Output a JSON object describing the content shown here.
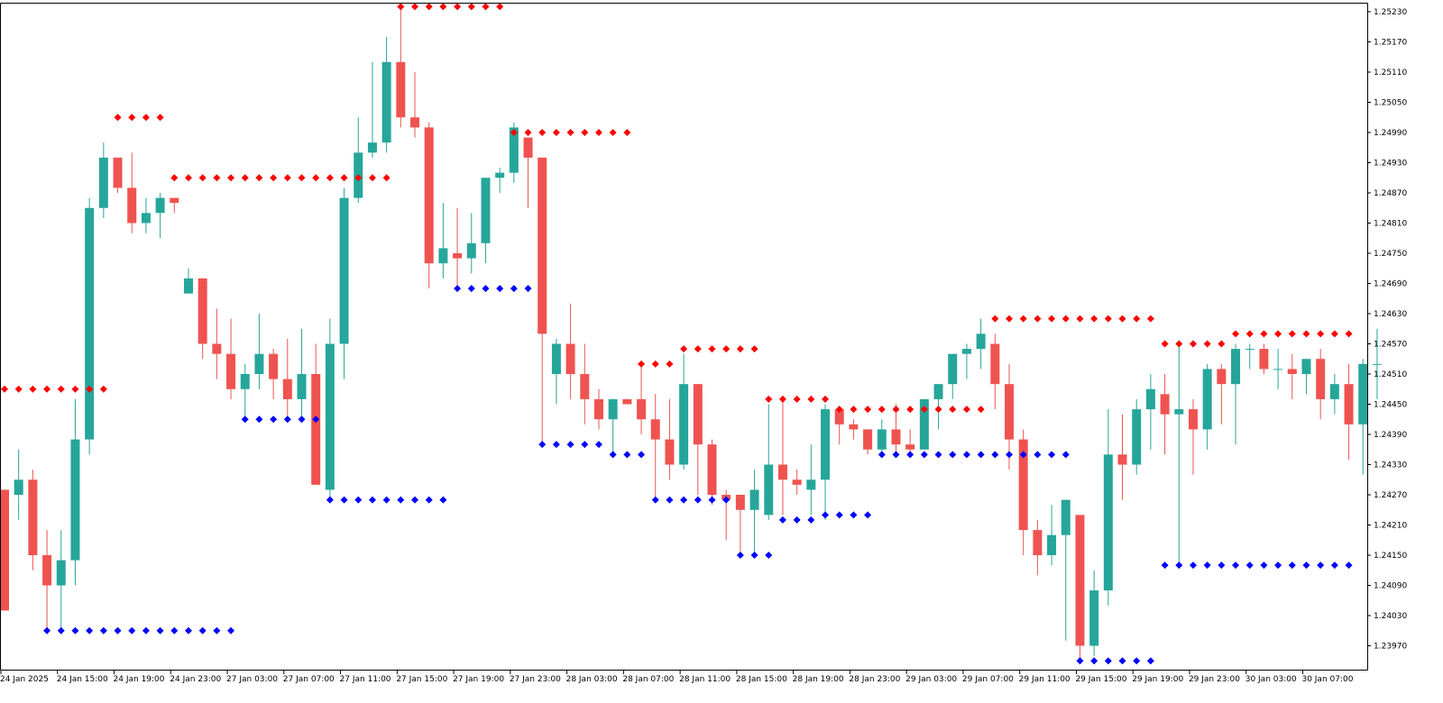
{
  "chart_data": {
    "type": "candlestick",
    "title": "",
    "grid": false,
    "colors": {
      "bull": "#26a69a",
      "bear": "#ef5350",
      "resistance": "#ff0000",
      "support": "#0000ff",
      "axis": "#000000",
      "background": "#ffffff"
    },
    "y_ticks": [
      "1.25230",
      "1.25170",
      "1.25110",
      "1.25050",
      "1.24990",
      "1.24930",
      "1.24870",
      "1.24810",
      "1.24750",
      "1.24690",
      "1.24630",
      "1.24570",
      "1.24510",
      "1.24450",
      "1.24390",
      "1.24330",
      "1.24270",
      "1.24210",
      "1.24150",
      "1.24090",
      "1.24030",
      "1.23970"
    ],
    "ylim": [
      1.2392,
      1.2526
    ],
    "x_ticks": [
      {
        "label": "24 Jan 2025",
        "index": 0
      },
      {
        "label": "24 Jan 15:00",
        "index": 4
      },
      {
        "label": "24 Jan 19:00",
        "index": 8
      },
      {
        "label": "24 Jan 23:00",
        "index": 12
      },
      {
        "label": "27 Jan 03:00",
        "index": 16
      },
      {
        "label": "27 Jan 07:00",
        "index": 20
      },
      {
        "label": "27 Jan 11:00",
        "index": 24
      },
      {
        "label": "27 Jan 15:00",
        "index": 28
      },
      {
        "label": "27 Jan 19:00",
        "index": 32
      },
      {
        "label": "27 Jan 23:00",
        "index": 36
      },
      {
        "label": "28 Jan 03:00",
        "index": 40
      },
      {
        "label": "28 Jan 07:00",
        "index": 44
      },
      {
        "label": "28 Jan 11:00",
        "index": 48
      },
      {
        "label": "28 Jan 15:00",
        "index": 52
      },
      {
        "label": "28 Jan 19:00",
        "index": 56
      },
      {
        "label": "28 Jan 23:00",
        "index": 60
      },
      {
        "label": "29 Jan 03:00",
        "index": 64
      },
      {
        "label": "29 Jan 07:00",
        "index": 68
      },
      {
        "label": "29 Jan 11:00",
        "index": 72
      },
      {
        "label": "29 Jan 15:00",
        "index": 76
      },
      {
        "label": "29 Jan 19:00",
        "index": 80
      },
      {
        "label": "29 Jan 23:00",
        "index": 84
      },
      {
        "label": "30 Jan 03:00",
        "index": 88
      },
      {
        "label": "30 Jan 07:00",
        "index": 92
      }
    ],
    "candles": [
      [
        1.2428,
        1.2428,
        1.2404,
        1.2404
      ],
      [
        1.2427,
        1.2436,
        1.2422,
        1.243
      ],
      [
        1.243,
        1.2432,
        1.2412,
        1.2415
      ],
      [
        1.2415,
        1.242,
        1.24,
        1.2409
      ],
      [
        1.2409,
        1.242,
        1.24,
        1.2414
      ],
      [
        1.2414,
        1.2446,
        1.2409,
        1.2438
      ],
      [
        1.2438,
        1.2486,
        1.2435,
        1.2484
      ],
      [
        1.2484,
        1.2497,
        1.2482,
        1.2494
      ],
      [
        1.2494,
        1.2494,
        1.2487,
        1.2488
      ],
      [
        1.2488,
        1.2495,
        1.2479,
        1.2481
      ],
      [
        1.2481,
        1.2486,
        1.2479,
        1.2483
      ],
      [
        1.2483,
        1.2487,
        1.2478,
        1.2486
      ],
      [
        1.2486,
        1.2486,
        1.2483,
        1.2485
      ],
      [
        1.2467,
        1.2472,
        1.2467,
        1.247
      ],
      [
        1.247,
        1.247,
        1.2454,
        1.2457
      ],
      [
        1.2457,
        1.2464,
        1.245,
        1.2455
      ],
      [
        1.2455,
        1.2462,
        1.2446,
        1.2448
      ],
      [
        1.2448,
        1.2453,
        1.2442,
        1.2451
      ],
      [
        1.2451,
        1.2463,
        1.2448,
        1.2455
      ],
      [
        1.2455,
        1.2456,
        1.2446,
        1.245
      ],
      [
        1.245,
        1.2458,
        1.2442,
        1.2446
      ],
      [
        1.2446,
        1.246,
        1.2442,
        1.2451
      ],
      [
        1.2451,
        1.2457,
        1.2429,
        1.2429
      ],
      [
        1.2428,
        1.2462,
        1.2426,
        1.2457
      ],
      [
        1.2457,
        1.2488,
        1.245,
        1.2486
      ],
      [
        1.2486,
        1.2502,
        1.2485,
        1.2495
      ],
      [
        1.2495,
        1.2513,
        1.2494,
        1.2497
      ],
      [
        1.2497,
        1.2518,
        1.2495,
        1.2513
      ],
      [
        1.2513,
        1.2524,
        1.25,
        1.2502
      ],
      [
        1.2502,
        1.2511,
        1.2498,
        1.25
      ],
      [
        1.25,
        1.2501,
        1.2468,
        1.2473
      ],
      [
        1.2473,
        1.2485,
        1.247,
        1.2476
      ],
      [
        1.2475,
        1.2484,
        1.2468,
        1.2474
      ],
      [
        1.2474,
        1.2483,
        1.2471,
        1.2477
      ],
      [
        1.2477,
        1.249,
        1.2473,
        1.249
      ],
      [
        1.249,
        1.2492,
        1.2487,
        1.2491
      ],
      [
        1.2491,
        1.2501,
        1.2489,
        1.25
      ],
      [
        1.2498,
        1.2498,
        1.2484,
        1.2494
      ],
      [
        1.2494,
        1.2494,
        1.2437,
        1.2459
      ],
      [
        1.2451,
        1.2458,
        1.2445,
        1.2457
      ],
      [
        1.2457,
        1.2465,
        1.2446,
        1.2451
      ],
      [
        1.2451,
        1.2457,
        1.2441,
        1.2446
      ],
      [
        1.2446,
        1.2448,
        1.244,
        1.2442
      ],
      [
        1.2442,
        1.2446,
        1.2435,
        1.2446
      ],
      [
        1.2446,
        1.2446,
        1.2445,
        1.2445
      ],
      [
        1.2446,
        1.2453,
        1.2439,
        1.2442
      ],
      [
        1.2442,
        1.2447,
        1.2426,
        1.2438
      ],
      [
        1.2438,
        1.2446,
        1.243,
        1.2433
      ],
      [
        1.2433,
        1.2455,
        1.2432,
        1.2449
      ],
      [
        1.2449,
        1.2449,
        1.2427,
        1.2437
      ],
      [
        1.2437,
        1.2438,
        1.2425,
        1.2427
      ],
      [
        1.2427,
        1.2428,
        1.2418,
        1.2426
      ],
      [
        1.2427,
        1.2427,
        1.2415,
        1.2424
      ],
      [
        1.2424,
        1.2432,
        1.2415,
        1.2428
      ],
      [
        1.2423,
        1.2445,
        1.2422,
        1.2433
      ],
      [
        1.2433,
        1.2446,
        1.2423,
        1.243
      ],
      [
        1.243,
        1.2432,
        1.2427,
        1.2429
      ],
      [
        1.2428,
        1.2437,
        1.2423,
        1.243
      ],
      [
        1.243,
        1.2445,
        1.2422,
        1.2444
      ],
      [
        1.2444,
        1.2444,
        1.2437,
        1.2441
      ],
      [
        1.2441,
        1.2442,
        1.2438,
        1.244
      ],
      [
        1.244,
        1.244,
        1.2435,
        1.2436
      ],
      [
        1.2436,
        1.2442,
        1.2435,
        1.244
      ],
      [
        1.244,
        1.2445,
        1.2435,
        1.2437
      ],
      [
        1.2437,
        1.244,
        1.2435,
        1.2436
      ],
      [
        1.2436,
        1.2446,
        1.2436,
        1.2446
      ],
      [
        1.2446,
        1.2449,
        1.244,
        1.2449
      ],
      [
        1.2449,
        1.2455,
        1.2446,
        1.2455
      ],
      [
        1.2455,
        1.2457,
        1.245,
        1.2456
      ],
      [
        1.2456,
        1.2462,
        1.2452,
        1.2459
      ],
      [
        1.2457,
        1.2459,
        1.2444,
        1.2449
      ],
      [
        1.2449,
        1.2453,
        1.2432,
        1.2438
      ],
      [
        1.2438,
        1.244,
        1.2415,
        1.242
      ],
      [
        1.242,
        1.2422,
        1.2411,
        1.2415
      ],
      [
        1.2415,
        1.2425,
        1.2413,
        1.2419
      ],
      [
        1.2419,
        1.2426,
        1.2398,
        1.2426
      ],
      [
        1.2423,
        1.2423,
        1.2394,
        1.2397
      ],
      [
        1.2397,
        1.2412,
        1.2395,
        1.2408
      ],
      [
        1.2408,
        1.2444,
        1.2405,
        1.2435
      ],
      [
        1.2435,
        1.2443,
        1.2426,
        1.2433
      ],
      [
        1.2433,
        1.2446,
        1.2431,
        1.2444
      ],
      [
        1.2444,
        1.2451,
        1.2436,
        1.2448
      ],
      [
        1.2447,
        1.2451,
        1.2435,
        1.2443
      ],
      [
        1.2443,
        1.2457,
        1.2413,
        1.2444
      ],
      [
        1.2444,
        1.2446,
        1.2431,
        1.244
      ],
      [
        1.244,
        1.2453,
        1.2436,
        1.2452
      ],
      [
        1.2452,
        1.2453,
        1.2441,
        1.2449
      ],
      [
        1.2449,
        1.2457,
        1.2437,
        1.2456
      ],
      [
        1.2456,
        1.2457,
        1.2452,
        1.2456
      ],
      [
        1.2456,
        1.2457,
        1.2451,
        1.2452
      ],
      [
        1.2452,
        1.2456,
        1.2448,
        1.2452
      ],
      [
        1.2452,
        1.2455,
        1.2446,
        1.2451
      ],
      [
        1.2451,
        1.2454,
        1.2447,
        1.2454
      ],
      [
        1.2454,
        1.2456,
        1.2442,
        1.2446
      ],
      [
        1.2446,
        1.2451,
        1.2443,
        1.2449
      ],
      [
        1.2449,
        1.2453,
        1.2434,
        1.2441
      ],
      [
        1.2441,
        1.2454,
        1.2431,
        1.2453
      ],
      [
        1.2453,
        1.246,
        1.2446,
        1.2453
      ]
    ],
    "resistance_levels": [
      {
        "price": 1.2448,
        "from": 0,
        "to": 7
      },
      {
        "price": 1.2502,
        "from": 8,
        "to": 11
      },
      {
        "price": 1.249,
        "from": 12,
        "to": 27
      },
      {
        "price": 1.2524,
        "from": 28,
        "to": 35
      },
      {
        "price": 1.2499,
        "from": 36,
        "to": 44
      },
      {
        "price": 1.2453,
        "from": 45,
        "to": 47
      },
      {
        "price": 1.2456,
        "from": 48,
        "to": 53
      },
      {
        "price": 1.2446,
        "from": 54,
        "to": 58
      },
      {
        "price": 1.2444,
        "from": 59,
        "to": 69
      },
      {
        "price": 1.2462,
        "from": 70,
        "to": 81
      },
      {
        "price": 1.2457,
        "from": 82,
        "to": 86
      },
      {
        "price": 1.2459,
        "from": 87,
        "to": 95
      }
    ],
    "support_levels": [
      {
        "price": 1.24,
        "from": 3,
        "to": 16
      },
      {
        "price": 1.2442,
        "from": 17,
        "to": 22
      },
      {
        "price": 1.2426,
        "from": 23,
        "to": 31
      },
      {
        "price": 1.2468,
        "from": 32,
        "to": 37
      },
      {
        "price": 1.2437,
        "from": 38,
        "to": 42
      },
      {
        "price": 1.2435,
        "from": 43,
        "to": 45
      },
      {
        "price": 1.2426,
        "from": 46,
        "to": 51
      },
      {
        "price": 1.2415,
        "from": 52,
        "to": 54
      },
      {
        "price": 1.2422,
        "from": 55,
        "to": 57
      },
      {
        "price": 1.2423,
        "from": 58,
        "to": 61
      },
      {
        "price": 1.2435,
        "from": 62,
        "to": 75
      },
      {
        "price": 1.2394,
        "from": 76,
        "to": 81
      },
      {
        "price": 1.2413,
        "from": 82,
        "to": 95
      }
    ]
  }
}
